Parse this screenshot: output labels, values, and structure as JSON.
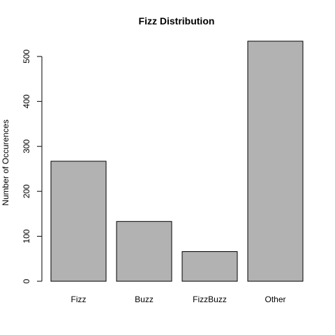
{
  "chart_data": {
    "type": "bar",
    "title": "Fizz Distribution",
    "xlabel": "",
    "ylabel": "Number of Occurences",
    "categories": [
      "Fizz",
      "Buzz",
      "FizzBuzz",
      "Other"
    ],
    "values": [
      267,
      133,
      66,
      534
    ],
    "ylim": [
      0,
      534
    ],
    "yticks": [
      0,
      100,
      200,
      300,
      400,
      500
    ],
    "bar_color": "#b2b2b2",
    "grid": false,
    "legend": "none"
  }
}
